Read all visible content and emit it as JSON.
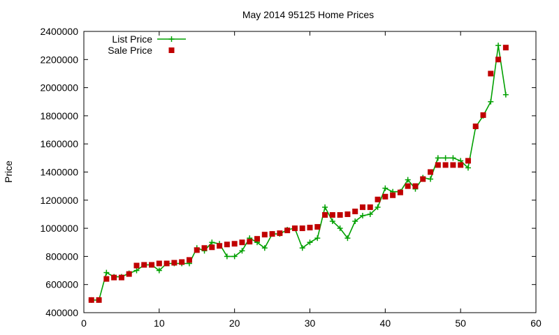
{
  "chart_data": {
    "type": "line",
    "title": "May 2014 95125 Home Prices",
    "xlabel": "",
    "ylabel": "Price",
    "xlim": [
      0,
      60
    ],
    "ylim": [
      400000,
      2400000
    ],
    "xticks": [
      0,
      10,
      20,
      30,
      40,
      50,
      60
    ],
    "yticks": [
      400000,
      600000,
      800000,
      1000000,
      1200000,
      1400000,
      1600000,
      1800000,
      2000000,
      2200000,
      2400000
    ],
    "grid": false,
    "legend_position": "top-left",
    "series": [
      {
        "name": "List Price",
        "style": "line-plus",
        "color": "#00a000",
        "points": [
          [
            1,
            490000
          ],
          [
            2,
            490000
          ],
          [
            3,
            685000
          ],
          [
            4,
            655000
          ],
          [
            5,
            655000
          ],
          [
            6,
            680000
          ],
          [
            7,
            700000
          ],
          [
            8,
            740000
          ],
          [
            9,
            740000
          ],
          [
            10,
            700000
          ],
          [
            11,
            750000
          ],
          [
            12,
            750000
          ],
          [
            13,
            750000
          ],
          [
            14,
            750000
          ],
          [
            15,
            860000
          ],
          [
            16,
            840000
          ],
          [
            17,
            900000
          ],
          [
            18,
            890000
          ],
          [
            19,
            800000
          ],
          [
            20,
            800000
          ],
          [
            21,
            840000
          ],
          [
            22,
            930000
          ],
          [
            23,
            900000
          ],
          [
            24,
            860000
          ],
          [
            25,
            960000
          ],
          [
            26,
            960000
          ],
          [
            27,
            990000
          ],
          [
            28,
            1000000
          ],
          [
            29,
            860000
          ],
          [
            30,
            900000
          ],
          [
            31,
            930000
          ],
          [
            32,
            1150000
          ],
          [
            33,
            1050000
          ],
          [
            34,
            1000000
          ],
          [
            35,
            930000
          ],
          [
            36,
            1050000
          ],
          [
            37,
            1090000
          ],
          [
            38,
            1100000
          ],
          [
            39,
            1150000
          ],
          [
            40,
            1285000
          ],
          [
            41,
            1260000
          ],
          [
            42,
            1260000
          ],
          [
            43,
            1345000
          ],
          [
            44,
            1280000
          ],
          [
            45,
            1360000
          ],
          [
            46,
            1350000
          ],
          [
            47,
            1500000
          ],
          [
            48,
            1500000
          ],
          [
            49,
            1500000
          ],
          [
            50,
            1480000
          ],
          [
            51,
            1430000
          ],
          [
            52,
            1720000
          ],
          [
            53,
            1800000
          ],
          [
            54,
            1900000
          ],
          [
            55,
            2300000
          ],
          [
            56,
            1950000
          ]
        ]
      },
      {
        "name": "Sale Price",
        "style": "square",
        "color": "#c00000",
        "points": [
          [
            1,
            490000
          ],
          [
            2,
            490000
          ],
          [
            3,
            640000
          ],
          [
            4,
            650000
          ],
          [
            5,
            650000
          ],
          [
            6,
            675000
          ],
          [
            7,
            735000
          ],
          [
            8,
            740000
          ],
          [
            9,
            740000
          ],
          [
            10,
            750000
          ],
          [
            11,
            750000
          ],
          [
            12,
            755000
          ],
          [
            13,
            760000
          ],
          [
            14,
            775000
          ],
          [
            15,
            845000
          ],
          [
            16,
            860000
          ],
          [
            17,
            865000
          ],
          [
            18,
            875000
          ],
          [
            19,
            885000
          ],
          [
            20,
            890000
          ],
          [
            21,
            900000
          ],
          [
            22,
            905000
          ],
          [
            23,
            925000
          ],
          [
            24,
            955000
          ],
          [
            25,
            960000
          ],
          [
            26,
            965000
          ],
          [
            27,
            985000
          ],
          [
            28,
            1000000
          ],
          [
            29,
            1000000
          ],
          [
            30,
            1005000
          ],
          [
            31,
            1010000
          ],
          [
            32,
            1095000
          ],
          [
            33,
            1095000
          ],
          [
            34,
            1095000
          ],
          [
            35,
            1100000
          ],
          [
            36,
            1120000
          ],
          [
            37,
            1150000
          ],
          [
            38,
            1150000
          ],
          [
            39,
            1205000
          ],
          [
            40,
            1225000
          ],
          [
            41,
            1235000
          ],
          [
            42,
            1255000
          ],
          [
            43,
            1300000
          ],
          [
            44,
            1300000
          ],
          [
            45,
            1350000
          ],
          [
            46,
            1400000
          ],
          [
            47,
            1450000
          ],
          [
            48,
            1450000
          ],
          [
            49,
            1450000
          ],
          [
            50,
            1450000
          ],
          [
            51,
            1480000
          ],
          [
            52,
            1725000
          ],
          [
            53,
            1805000
          ],
          [
            54,
            2100000
          ],
          [
            55,
            2200000
          ],
          [
            56,
            2285000
          ]
        ]
      }
    ]
  }
}
